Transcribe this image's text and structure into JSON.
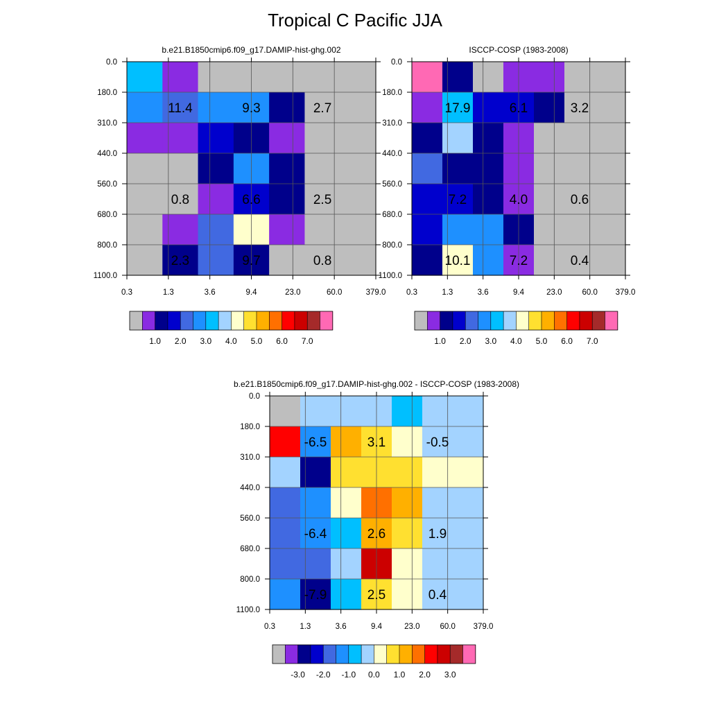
{
  "title": "Tropical C Pacific JJA",
  "palette": [
    "#bebebe",
    "#8a2be2",
    "#00008b",
    "#0000cd",
    "#4169e1",
    "#1e90ff",
    "#00bfff",
    "#a3d3ff",
    "#ffffcc",
    "#ffe030",
    "#ffb000",
    "#ff7000",
    "#ff0000",
    "#cc0000",
    "#a52a2a",
    "#ff69b4"
  ],
  "chart_data": [
    {
      "type": "heatmap",
      "title": "b.e21.B1850cmip6.f09_g17.DAMIP-hist-ghg.002",
      "x_ticks": [
        "0.3",
        "1.3",
        "3.6",
        "9.4",
        "23.0",
        "60.0",
        "379.0"
      ],
      "y_ticks": [
        "0.0",
        "180.0",
        "310.0",
        "440.0",
        "560.0",
        "680.0",
        "800.0",
        "1100.0"
      ],
      "cell_palette_index": [
        [
          6,
          1,
          0,
          0,
          0,
          0,
          0
        ],
        [
          5,
          4,
          5,
          5,
          2,
          0,
          0
        ],
        [
          1,
          1,
          3,
          2,
          1,
          0,
          0
        ],
        [
          0,
          0,
          2,
          5,
          2,
          0,
          0
        ],
        [
          0,
          0,
          1,
          3,
          2,
          0,
          0
        ],
        [
          0,
          1,
          4,
          8,
          1,
          0,
          0
        ],
        [
          0,
          2,
          4,
          2,
          0,
          0,
          0
        ]
      ],
      "annotations": [
        {
          "text": "11.4",
          "row": 1,
          "col": 1
        },
        {
          "text": "9.3",
          "row": 1,
          "col": 3
        },
        {
          "text": "2.7",
          "row": 1,
          "col": 5
        },
        {
          "text": "0.8",
          "row": 4,
          "col": 1
        },
        {
          "text": "6.6",
          "row": 4,
          "col": 3
        },
        {
          "text": "2.5",
          "row": 4,
          "col": 5
        },
        {
          "text": "2.3",
          "row": 6,
          "col": 1
        },
        {
          "text": "9.7",
          "row": 6,
          "col": 3
        },
        {
          "text": "0.8",
          "row": 6,
          "col": 5
        }
      ],
      "colorbar": {
        "labels": [
          "1.0",
          "2.0",
          "3.0",
          "4.0",
          "5.0",
          "6.0",
          "7.0"
        ]
      }
    },
    {
      "type": "heatmap",
      "title": "ISCCP-COSP (1983-2008)",
      "x_ticks": [
        "0.3",
        "1.3",
        "3.6",
        "9.4",
        "23.0",
        "60.0",
        "379.0"
      ],
      "y_ticks": [
        "0.0",
        "180.0",
        "310.0",
        "440.0",
        "560.0",
        "680.0",
        "800.0",
        "1100.0"
      ],
      "cell_palette_index": [
        [
          15,
          2,
          0,
          1,
          1,
          0,
          0
        ],
        [
          1,
          6,
          3,
          3,
          2,
          0,
          0
        ],
        [
          2,
          7,
          2,
          1,
          0,
          0,
          0
        ],
        [
          4,
          2,
          2,
          1,
          0,
          0,
          0
        ],
        [
          3,
          3,
          2,
          1,
          0,
          0,
          0
        ],
        [
          3,
          5,
          5,
          2,
          0,
          0,
          0
        ],
        [
          2,
          8,
          5,
          1,
          0,
          0,
          0
        ]
      ],
      "annotations": [
        {
          "text": "17.9",
          "row": 1,
          "col": 1
        },
        {
          "text": "6.1",
          "row": 1,
          "col": 3
        },
        {
          "text": "3.2",
          "row": 1,
          "col": 5
        },
        {
          "text": "7.2",
          "row": 4,
          "col": 1
        },
        {
          "text": "4.0",
          "row": 4,
          "col": 3
        },
        {
          "text": "0.6",
          "row": 4,
          "col": 5
        },
        {
          "text": "10.1",
          "row": 6,
          "col": 1
        },
        {
          "text": "7.2",
          "row": 6,
          "col": 3
        },
        {
          "text": "0.4",
          "row": 6,
          "col": 5
        }
      ],
      "colorbar": {
        "labels": [
          "1.0",
          "2.0",
          "3.0",
          "4.0",
          "5.0",
          "6.0",
          "7.0"
        ]
      }
    },
    {
      "type": "heatmap",
      "title": "b.e21.B1850cmip6.f09_g17.DAMIP-hist-ghg.002 - ISCCP-COSP (1983-2008)",
      "x_ticks": [
        "0.3",
        "1.3",
        "3.6",
        "9.4",
        "23.0",
        "60.0",
        "379.0"
      ],
      "y_ticks": [
        "0.0",
        "180.0",
        "310.0",
        "440.0",
        "560.0",
        "680.0",
        "800.0",
        "1100.0"
      ],
      "cell_palette_index": [
        [
          0,
          7,
          7,
          7,
          6,
          7,
          7
        ],
        [
          12,
          5,
          10,
          9,
          8,
          7,
          7
        ],
        [
          7,
          2,
          9,
          9,
          9,
          8,
          8
        ],
        [
          4,
          5,
          8,
          11,
          10,
          7,
          7
        ],
        [
          4,
          5,
          6,
          10,
          9,
          7,
          7
        ],
        [
          4,
          4,
          7,
          13,
          8,
          7,
          7
        ],
        [
          5,
          2,
          6,
          9,
          8,
          7,
          7
        ]
      ],
      "annotations": [
        {
          "text": "-6.5",
          "row": 1,
          "col": 1
        },
        {
          "text": "3.1",
          "row": 1,
          "col": 3
        },
        {
          "text": "-0.5",
          "row": 1,
          "col": 5
        },
        {
          "text": "-6.4",
          "row": 4,
          "col": 1
        },
        {
          "text": "2.6",
          "row": 4,
          "col": 3
        },
        {
          "text": "1.9",
          "row": 4,
          "col": 5
        },
        {
          "text": "-7.9",
          "row": 6,
          "col": 1
        },
        {
          "text": "2.5",
          "row": 6,
          "col": 3
        },
        {
          "text": "0.4",
          "row": 6,
          "col": 5
        }
      ],
      "colorbar": {
        "labels": [
          "-3.0",
          "-2.0",
          "-1.0",
          "0.0",
          "1.0",
          "2.0",
          "3.0"
        ]
      }
    }
  ]
}
